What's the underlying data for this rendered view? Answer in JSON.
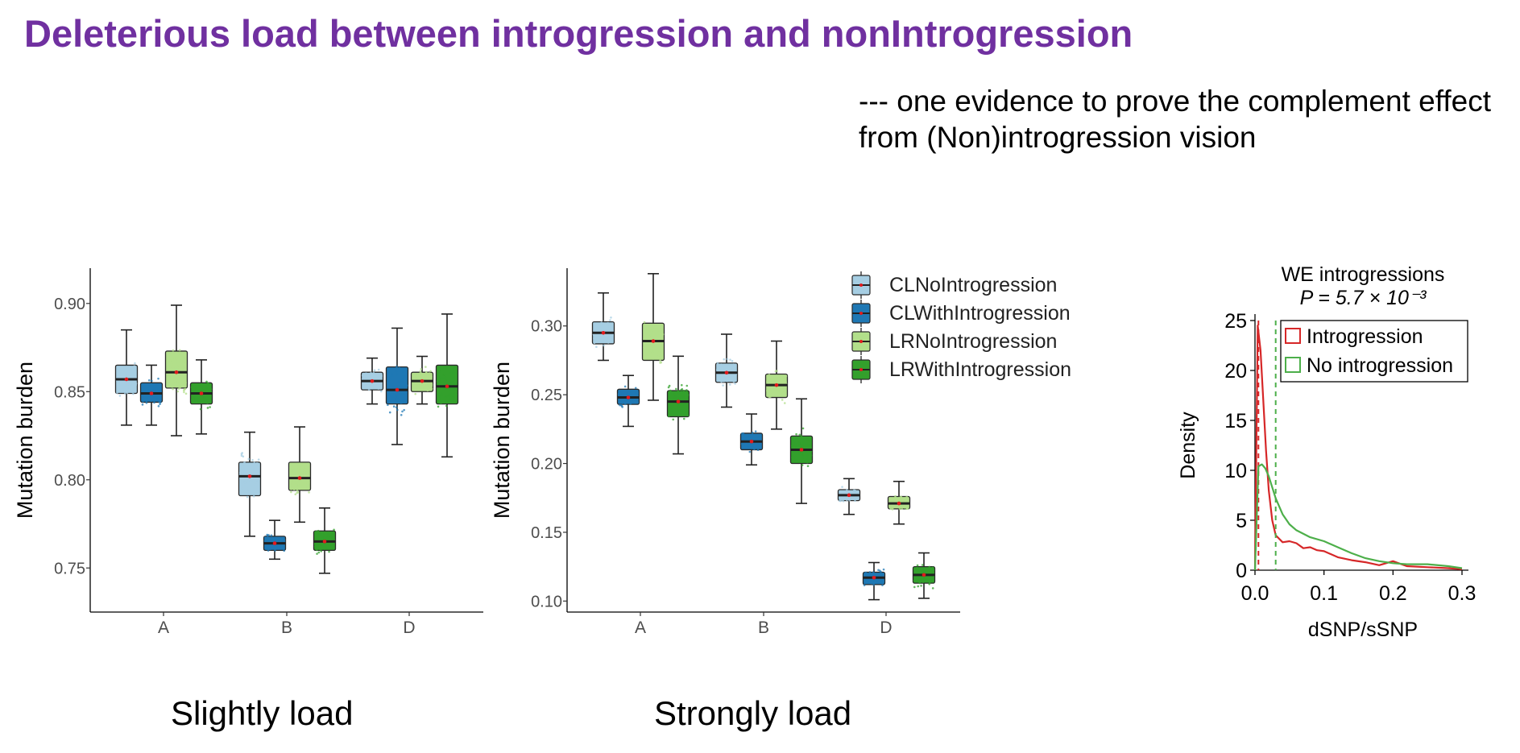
{
  "page": {
    "title": "Deleterious load between introgression and nonIntrogression",
    "subtitle_line1": "--- one evidence to prove the complement effect",
    "subtitle_line2": "from (Non)introgression vision",
    "caption_left": "Slightly load",
    "caption_middle": "Strongly load"
  },
  "colors": {
    "title": "#7030a0",
    "CLNoIntrogression": "#a6cee3",
    "CLWithIntrogression": "#1f78b4",
    "LRNoIntrogression": "#b2df8a",
    "LRWithIntrogression": "#33a02c",
    "mean_dot": "#e31a1c",
    "introgression_line": "#d62728",
    "no_introgression_line": "#4daf4a"
  },
  "chart_data": [
    {
      "type": "box",
      "ylabel": "Mutation burden",
      "ylim": [
        0.725,
        0.92
      ],
      "yticks": [
        "0.75",
        "0.80",
        "0.85",
        "0.90"
      ],
      "categories": [
        "A",
        "B",
        "D"
      ],
      "series": [
        {
          "name": "CLNoIntrogression",
          "boxes": [
            {
              "whisker_low": 0.831,
              "q1": 0.849,
              "median": 0.857,
              "q3": 0.865,
              "whisker_high": 0.885
            },
            {
              "whisker_low": 0.768,
              "q1": 0.791,
              "median": 0.802,
              "q3": 0.81,
              "whisker_high": 0.827
            },
            {
              "whisker_low": 0.843,
              "q1": 0.851,
              "median": 0.856,
              "q3": 0.861,
              "whisker_high": 0.869
            }
          ]
        },
        {
          "name": "CLWithIntrogression",
          "boxes": [
            {
              "whisker_low": 0.831,
              "q1": 0.844,
              "median": 0.849,
              "q3": 0.855,
              "whisker_high": 0.865
            },
            {
              "whisker_low": 0.755,
              "q1": 0.76,
              "median": 0.764,
              "q3": 0.768,
              "whisker_high": 0.777
            },
            {
              "whisker_low": 0.82,
              "q1": 0.843,
              "median": 0.851,
              "q3": 0.864,
              "whisker_high": 0.886
            }
          ]
        },
        {
          "name": "LRNoIntrogression",
          "boxes": [
            {
              "whisker_low": 0.825,
              "q1": 0.852,
              "median": 0.861,
              "q3": 0.873,
              "whisker_high": 0.899
            },
            {
              "whisker_low": 0.776,
              "q1": 0.794,
              "median": 0.801,
              "q3": 0.81,
              "whisker_high": 0.83
            },
            {
              "whisker_low": 0.843,
              "q1": 0.85,
              "median": 0.856,
              "q3": 0.861,
              "whisker_high": 0.87
            }
          ]
        },
        {
          "name": "LRWithIntrogression",
          "boxes": [
            {
              "whisker_low": 0.826,
              "q1": 0.843,
              "median": 0.849,
              "q3": 0.855,
              "whisker_high": 0.868
            },
            {
              "whisker_low": 0.747,
              "q1": 0.76,
              "median": 0.765,
              "q3": 0.771,
              "whisker_high": 0.784
            },
            {
              "whisker_low": 0.813,
              "q1": 0.843,
              "median": 0.853,
              "q3": 0.865,
              "whisker_high": 0.894
            }
          ]
        }
      ]
    },
    {
      "type": "box",
      "ylabel": "Mutation burden",
      "ylim": [
        0.092,
        0.342
      ],
      "yticks": [
        "0.10",
        "0.15",
        "0.20",
        "0.25",
        "0.30"
      ],
      "categories": [
        "A",
        "B",
        "D"
      ],
      "legend": [
        "CLNoIntrogression",
        "CLWithIntrogression",
        "LRNoIntrogression",
        "LRWithIntrogression"
      ],
      "series": [
        {
          "name": "CLNoIntrogression",
          "boxes": [
            {
              "whisker_low": 0.275,
              "q1": 0.287,
              "median": 0.295,
              "q3": 0.303,
              "whisker_high": 0.324
            },
            {
              "whisker_low": 0.241,
              "q1": 0.259,
              "median": 0.266,
              "q3": 0.273,
              "whisker_high": 0.294
            },
            {
              "whisker_low": 0.163,
              "q1": 0.173,
              "median": 0.177,
              "q3": 0.181,
              "whisker_high": 0.189
            }
          ]
        },
        {
          "name": "CLWithIntrogression",
          "boxes": [
            {
              "whisker_low": 0.227,
              "q1": 0.243,
              "median": 0.248,
              "q3": 0.254,
              "whisker_high": 0.264
            },
            {
              "whisker_low": 0.199,
              "q1": 0.21,
              "median": 0.216,
              "q3": 0.222,
              "whisker_high": 0.236
            },
            {
              "whisker_low": 0.101,
              "q1": 0.112,
              "median": 0.117,
              "q3": 0.121,
              "whisker_high": 0.128
            }
          ]
        },
        {
          "name": "LRNoIntrogression",
          "boxes": [
            {
              "whisker_low": 0.246,
              "q1": 0.275,
              "median": 0.289,
              "q3": 0.302,
              "whisker_high": 0.338
            },
            {
              "whisker_low": 0.225,
              "q1": 0.248,
              "median": 0.257,
              "q3": 0.265,
              "whisker_high": 0.289
            },
            {
              "whisker_low": 0.156,
              "q1": 0.167,
              "median": 0.171,
              "q3": 0.176,
              "whisker_high": 0.187
            }
          ]
        },
        {
          "name": "LRWithIntrogression",
          "boxes": [
            {
              "whisker_low": 0.207,
              "q1": 0.234,
              "median": 0.245,
              "q3": 0.253,
              "whisker_high": 0.278
            },
            {
              "whisker_low": 0.171,
              "q1": 0.2,
              "median": 0.21,
              "q3": 0.22,
              "whisker_high": 0.247
            },
            {
              "whisker_low": 0.102,
              "q1": 0.113,
              "median": 0.119,
              "q3": 0.125,
              "whisker_high": 0.135
            }
          ]
        }
      ]
    },
    {
      "type": "line",
      "title": "WE introgressions",
      "subtitle": "P = 5.7 × 10⁻³",
      "xlabel": "dSNP/sSNP",
      "ylabel": "Density",
      "xlim": [
        0.0,
        0.3
      ],
      "ylim": [
        0,
        25
      ],
      "xticks": [
        "0.0",
        "0.1",
        "0.2",
        "0.3"
      ],
      "yticks": [
        "0",
        "5",
        "10",
        "15",
        "20",
        "25"
      ],
      "legend": "top-right",
      "series": [
        {
          "name": "Introgression",
          "x": [
            0.0,
            0.004,
            0.008,
            0.012,
            0.016,
            0.02,
            0.025,
            0.03,
            0.04,
            0.05,
            0.06,
            0.07,
            0.08,
            0.09,
            0.1,
            0.12,
            0.14,
            0.16,
            0.18,
            0.2,
            0.22,
            0.25,
            0.28,
            0.3
          ],
          "y": [
            0,
            24.5,
            22,
            17,
            12,
            8,
            5,
            3.5,
            2.8,
            2.9,
            2.7,
            2.2,
            2.3,
            2.0,
            1.9,
            1.3,
            1.0,
            0.8,
            0.5,
            0.9,
            0.4,
            0.3,
            0.2,
            0.1
          ],
          "dashed_marker": 0.005
        },
        {
          "name": "No introgression",
          "x": [
            0.0,
            0.005,
            0.01,
            0.015,
            0.02,
            0.025,
            0.03,
            0.04,
            0.05,
            0.06,
            0.08,
            0.1,
            0.12,
            0.14,
            0.16,
            0.18,
            0.2,
            0.22,
            0.25,
            0.28,
            0.3
          ],
          "y": [
            0,
            10.4,
            10.6,
            10.2,
            9.4,
            8.3,
            7.2,
            5.6,
            4.6,
            4.0,
            3.3,
            2.9,
            2.3,
            1.7,
            1.2,
            0.9,
            0.7,
            0.6,
            0.6,
            0.4,
            0.2
          ],
          "dashed_marker": 0.03
        }
      ]
    }
  ]
}
